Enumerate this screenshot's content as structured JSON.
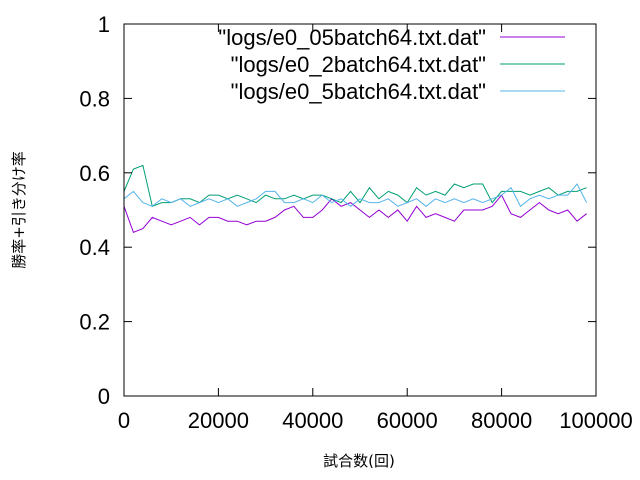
{
  "chart_data": {
    "type": "line",
    "xlabel": "試合数(回)",
    "ylabel": "勝率+引き分け率",
    "xlim": [
      0,
      100000
    ],
    "ylim": [
      0,
      1
    ],
    "xticks": [
      0,
      20000,
      40000,
      60000,
      80000,
      100000
    ],
    "yticks": [
      0,
      0.2,
      0.4,
      0.6,
      0.8,
      1
    ],
    "xtick_labels": [
      "0",
      "20000",
      "40000",
      "60000",
      "80000",
      "100000"
    ],
    "ytick_labels": [
      "0",
      "0.2",
      "0.4",
      "0.6",
      "0.8",
      "1"
    ],
    "grid": false,
    "legend_position": "top-right",
    "series": [
      {
        "name": "\"logs/e0_05batch64.txt.dat\"",
        "color": "#9400d3",
        "x": [
          0,
          2000,
          4000,
          6000,
          8000,
          10000,
          12000,
          14000,
          16000,
          18000,
          20000,
          22000,
          24000,
          26000,
          28000,
          30000,
          32000,
          34000,
          36000,
          38000,
          40000,
          42000,
          44000,
          46000,
          48000,
          50000,
          52000,
          54000,
          56000,
          58000,
          60000,
          62000,
          64000,
          66000,
          68000,
          70000,
          72000,
          74000,
          76000,
          78000,
          80000,
          82000,
          84000,
          86000,
          88000,
          90000,
          92000,
          94000,
          96000,
          98000
        ],
        "y": [
          0.51,
          0.44,
          0.45,
          0.48,
          0.47,
          0.46,
          0.47,
          0.48,
          0.46,
          0.48,
          0.48,
          0.47,
          0.47,
          0.46,
          0.47,
          0.47,
          0.48,
          0.5,
          0.51,
          0.48,
          0.48,
          0.5,
          0.53,
          0.51,
          0.52,
          0.5,
          0.48,
          0.5,
          0.48,
          0.5,
          0.47,
          0.51,
          0.48,
          0.49,
          0.48,
          0.47,
          0.5,
          0.5,
          0.5,
          0.51,
          0.54,
          0.49,
          0.48,
          0.5,
          0.52,
          0.5,
          0.49,
          0.5,
          0.47,
          0.49
        ]
      },
      {
        "name": "\"logs/e0_2batch64.txt.dat\"",
        "color": "#009e73",
        "x": [
          0,
          2000,
          4000,
          6000,
          8000,
          10000,
          12000,
          14000,
          16000,
          18000,
          20000,
          22000,
          24000,
          26000,
          28000,
          30000,
          32000,
          34000,
          36000,
          38000,
          40000,
          42000,
          44000,
          46000,
          48000,
          50000,
          52000,
          54000,
          56000,
          58000,
          60000,
          62000,
          64000,
          66000,
          68000,
          70000,
          72000,
          74000,
          76000,
          78000,
          80000,
          82000,
          84000,
          86000,
          88000,
          90000,
          92000,
          94000,
          96000,
          98000
        ],
        "y": [
          0.55,
          0.61,
          0.62,
          0.51,
          0.52,
          0.52,
          0.53,
          0.53,
          0.52,
          0.54,
          0.54,
          0.53,
          0.54,
          0.53,
          0.52,
          0.54,
          0.53,
          0.53,
          0.54,
          0.53,
          0.54,
          0.54,
          0.53,
          0.52,
          0.55,
          0.52,
          0.56,
          0.53,
          0.55,
          0.54,
          0.52,
          0.56,
          0.54,
          0.55,
          0.54,
          0.57,
          0.56,
          0.57,
          0.57,
          0.52,
          0.55,
          0.55,
          0.55,
          0.54,
          0.55,
          0.56,
          0.54,
          0.55,
          0.55,
          0.56
        ]
      },
      {
        "name": "\"logs/e0_5batch64.txt.dat\"",
        "color": "#56b4e9",
        "x": [
          0,
          2000,
          4000,
          6000,
          8000,
          10000,
          12000,
          14000,
          16000,
          18000,
          20000,
          22000,
          24000,
          26000,
          28000,
          30000,
          32000,
          34000,
          36000,
          38000,
          40000,
          42000,
          44000,
          46000,
          48000,
          50000,
          52000,
          54000,
          56000,
          58000,
          60000,
          62000,
          64000,
          66000,
          68000,
          70000,
          72000,
          74000,
          76000,
          78000,
          80000,
          82000,
          84000,
          86000,
          88000,
          90000,
          92000,
          94000,
          96000,
          98000
        ],
        "y": [
          0.53,
          0.55,
          0.52,
          0.51,
          0.53,
          0.52,
          0.53,
          0.51,
          0.52,
          0.53,
          0.52,
          0.53,
          0.51,
          0.52,
          0.53,
          0.55,
          0.55,
          0.52,
          0.52,
          0.53,
          0.52,
          0.54,
          0.52,
          0.53,
          0.51,
          0.53,
          0.52,
          0.52,
          0.53,
          0.51,
          0.52,
          0.53,
          0.51,
          0.53,
          0.52,
          0.53,
          0.52,
          0.53,
          0.52,
          0.53,
          0.54,
          0.56,
          0.51,
          0.53,
          0.54,
          0.53,
          0.54,
          0.54,
          0.57,
          0.52
        ]
      }
    ]
  }
}
